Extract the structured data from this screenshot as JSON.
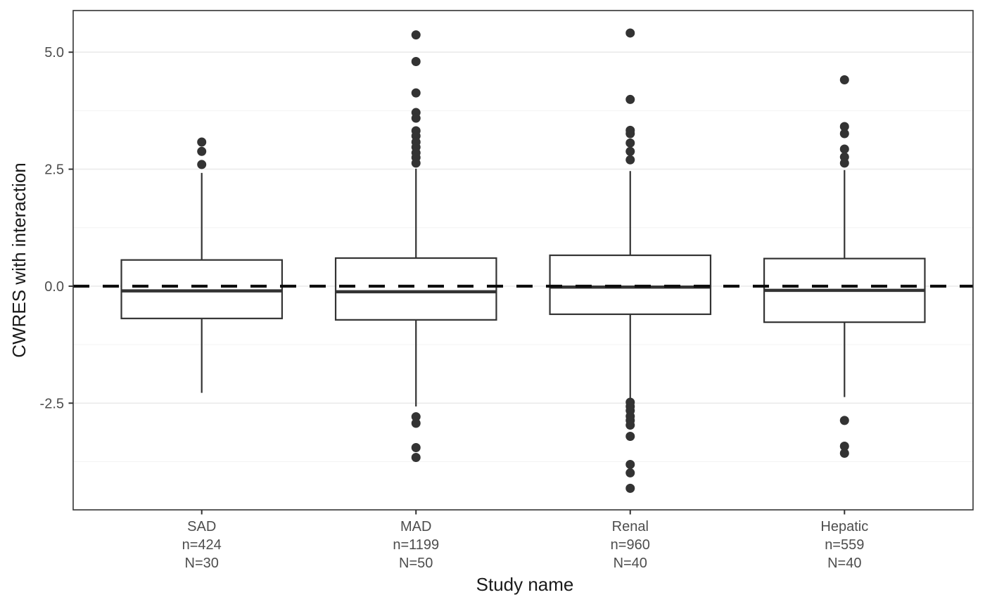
{
  "chart_data": {
    "type": "boxplot",
    "title": "",
    "xlabel": "Study name",
    "ylabel": "CWRES with interaction",
    "ylim": [
      -4.78,
      5.89
    ],
    "y_major_ticks": [
      5.0,
      2.5,
      0.0,
      -2.5
    ],
    "y_tick_labels": [
      "5.0",
      "2.5",
      "0.0",
      "-2.5"
    ],
    "y_minor_ticks": [
      3.75,
      1.25,
      -1.25,
      -3.75
    ],
    "grid": true,
    "legend": "none",
    "reference_line": {
      "y": 0.0,
      "style": "dashed",
      "color": "#0d0d0d"
    },
    "categories": [
      {
        "name": "SAD",
        "label_lines": [
          "SAD",
          "n=424",
          "N=30"
        ],
        "stats": {
          "whisker_low": -2.28,
          "q1": -0.69,
          "median": -0.1,
          "q3": 0.56,
          "whisker_high": 2.42
        },
        "outliers": [
          3.08,
          2.88,
          2.6
        ]
      },
      {
        "name": "MAD",
        "label_lines": [
          "MAD",
          "n=1199",
          "N=50"
        ],
        "stats": {
          "whisker_low": -2.57,
          "q1": -0.72,
          "median": -0.12,
          "q3": 0.6,
          "whisker_high": 2.51
        },
        "outliers": [
          5.37,
          4.8,
          4.13,
          3.71,
          3.59,
          3.32,
          3.21,
          3.08,
          2.97,
          2.85,
          2.75,
          2.63,
          -2.79,
          -2.93,
          -3.45,
          -3.66
        ]
      },
      {
        "name": "Renal",
        "label_lines": [
          "Renal",
          "n=960",
          "N=40"
        ],
        "stats": {
          "whisker_low": -2.45,
          "q1": -0.6,
          "median": -0.02,
          "q3": 0.66,
          "whisker_high": 2.46
        },
        "outliers": [
          5.41,
          3.99,
          3.33,
          3.26,
          3.06,
          2.88,
          2.7,
          -2.48,
          -2.57,
          -2.66,
          -2.78,
          -2.87,
          -2.97,
          -3.21,
          -3.81,
          -3.99,
          -4.32
        ]
      },
      {
        "name": "Hepatic",
        "label_lines": [
          "Hepatic",
          "n=559",
          "N=40"
        ],
        "stats": {
          "whisker_low": -2.37,
          "q1": -0.77,
          "median": -0.09,
          "q3": 0.59,
          "whisker_high": 2.48
        },
        "outliers": [
          4.41,
          3.41,
          3.26,
          2.93,
          2.76,
          2.63,
          -2.87,
          -3.42,
          -3.57
        ]
      }
    ],
    "colors": {
      "box_fill": "#ffffff",
      "box_stroke": "#333333",
      "median": "#333333",
      "whisker": "#333333",
      "outlier": "#333333",
      "panel_border": "#333333",
      "grid_major": "#ebebeb",
      "grid_minor": "#f3f3f3",
      "tick_mark": "#333333",
      "tick_label": "#4d4d4d",
      "axis_title": "#1a1a1a",
      "background": "#ffffff"
    }
  }
}
